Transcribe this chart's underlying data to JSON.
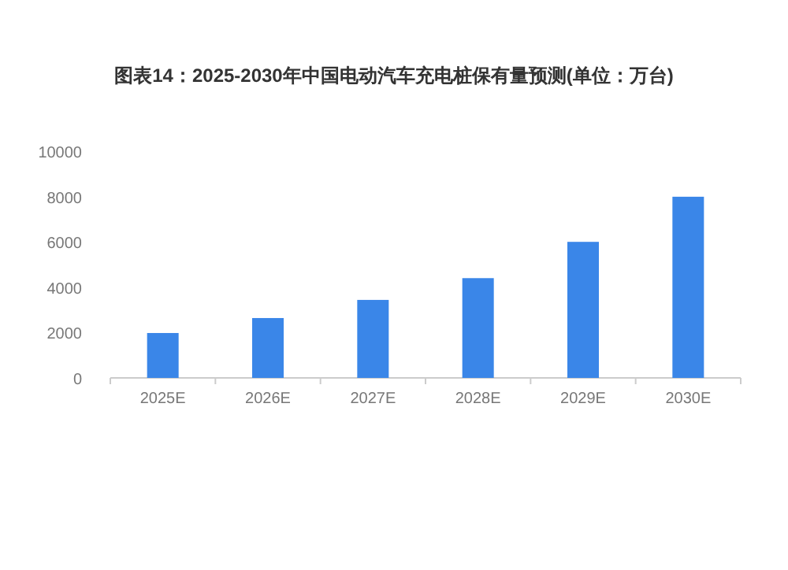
{
  "chart_data": {
    "type": "bar",
    "title": "图表14：2025-2030年中国电动汽车充电桩保有量预测(单位：万台)",
    "categories": [
      "2025E",
      "2026E",
      "2027E",
      "2028E",
      "2029E",
      "2030E"
    ],
    "values": [
      1980,
      2640,
      3440,
      4400,
      6000,
      7990
    ],
    "color": "#3a86e8",
    "ylim": [
      0,
      10000
    ],
    "yticks": [
      0,
      2000,
      4000,
      6000,
      8000,
      10000
    ]
  }
}
